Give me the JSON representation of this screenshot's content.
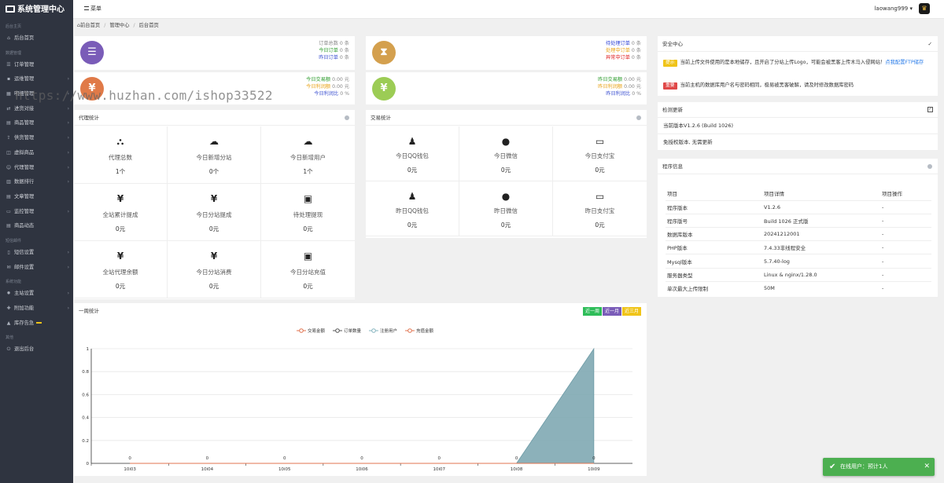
{
  "app": {
    "title": "系统管理中心"
  },
  "sidebar": {
    "sections": [
      {
        "label": "后台主页",
        "items": [
          {
            "label": "后台首页",
            "icon": "house-icon",
            "arrow": false
          }
        ]
      },
      {
        "label": "数据管理",
        "items": [
          {
            "label": "订单管理",
            "icon": "list-icon",
            "arrow": false
          },
          {
            "label": "运维管理",
            "icon": "chat-icon",
            "arrow": true
          },
          {
            "label": "明细管理",
            "icon": "grid-icon",
            "arrow": true
          },
          {
            "label": "进货对接",
            "icon": "link-icon",
            "arrow": true
          },
          {
            "label": "商品管理",
            "icon": "cart-icon",
            "arrow": true
          },
          {
            "label": "供货管理",
            "icon": "upload-icon",
            "arrow": true
          },
          {
            "label": "虚拟商品",
            "icon": "cube-icon",
            "arrow": true
          },
          {
            "label": "代理管理",
            "icon": "user-icon",
            "arrow": true
          },
          {
            "label": "数据排行",
            "icon": "chart-icon",
            "arrow": true
          },
          {
            "label": "文章管理",
            "icon": "doc-icon",
            "arrow": false
          },
          {
            "label": "监控管理",
            "icon": "monitor-icon",
            "arrow": true
          },
          {
            "label": "商品动态",
            "icon": "doc-icon",
            "arrow": false
          }
        ]
      },
      {
        "label": "短信邮件",
        "items": [
          {
            "label": "短信设置",
            "icon": "phone-icon",
            "arrow": true
          },
          {
            "label": "邮件设置",
            "icon": "mail-icon",
            "arrow": true
          }
        ]
      },
      {
        "label": "系统功能",
        "items": [
          {
            "label": "主站设置",
            "icon": "gear-icon",
            "arrow": true
          },
          {
            "label": "附加功能",
            "icon": "puzzle-icon",
            "arrow": true
          },
          {
            "label": "库存告急",
            "icon": "alert-icon",
            "arrow": false,
            "warn": true
          }
        ]
      },
      {
        "label": "其他",
        "items": [
          {
            "label": "退出后台",
            "icon": "power-icon",
            "arrow": false
          }
        ]
      }
    ]
  },
  "topbar": {
    "menu_label": "菜单",
    "user": "laowang999"
  },
  "breadcrumb": {
    "home": "前台首页",
    "center": "管理中心",
    "current": "后台首页"
  },
  "stats": {
    "orders": {
      "lines": [
        {
          "label": "订单总数",
          "value": "0 条",
          "color": "#888888"
        },
        {
          "label": "今日订单",
          "value": "0 条",
          "color": "#2e9c2e"
        },
        {
          "label": "昨日订单",
          "value": "0 条",
          "color": "#3a4fd0"
        }
      ],
      "circle_color": "#7a5cb8",
      "icon": "list-icon"
    },
    "pending": {
      "lines": [
        {
          "label": "待处理订单",
          "value": "0 条",
          "color": "#2b3fd6"
        },
        {
          "label": "处理中订单",
          "value": "0 条",
          "color": "#e8a317"
        },
        {
          "label": "异常中订单",
          "value": "0 条",
          "color": "#e02020"
        }
      ],
      "circle_color": "#d4a04e",
      "icon": "hourglass-icon"
    },
    "today_money": {
      "lines": [
        {
          "label": "今日交易额",
          "value": "0.00 元",
          "color": "#2e9c2e"
        },
        {
          "label": "今日利润额",
          "value": "0.00 元",
          "color": "#e8a317"
        },
        {
          "label": "今日利润比",
          "value": "0 %",
          "color": "#3a4fd0"
        }
      ],
      "circle_color": "#e07a48",
      "icon": "yen-icon"
    },
    "yesterday_money": {
      "lines": [
        {
          "label": "昨日交易额",
          "value": "0.00 元",
          "color": "#2e9c2e"
        },
        {
          "label": "昨日利润额",
          "value": "0.00 元",
          "color": "#e8a317"
        },
        {
          "label": "昨日利润比",
          "value": "0 %",
          "color": "#3a4fd0"
        }
      ],
      "circle_color": "#9ccc55",
      "icon": "yen-icon"
    }
  },
  "agent_stats": {
    "title": "代理统计",
    "cells": [
      {
        "icon": "sitemap-icon",
        "glyph": "⛬",
        "label": "代理总数",
        "value": "1个"
      },
      {
        "icon": "cloud-icon",
        "glyph": "☁",
        "label": "今日新增分站",
        "value": "0个"
      },
      {
        "icon": "cloud-icon",
        "glyph": "☁",
        "label": "今日新增用户",
        "value": "1个"
      },
      {
        "icon": "yen-icon",
        "glyph": "¥",
        "label": "全站累计提成",
        "value": "0元"
      },
      {
        "icon": "yen-icon",
        "glyph": "¥",
        "label": "今日分站提成",
        "value": "0元"
      },
      {
        "icon": "money-icon",
        "glyph": "▣",
        "label": "待处理提现",
        "value": "0元"
      },
      {
        "icon": "yen-icon",
        "glyph": "¥",
        "label": "全站代理余额",
        "value": "0元"
      },
      {
        "icon": "yen-icon",
        "glyph": "¥",
        "label": "今日分站消费",
        "value": "0元"
      },
      {
        "icon": "money-icon",
        "glyph": "▣",
        "label": "今日分站充值",
        "value": "0元"
      }
    ]
  },
  "trade_stats": {
    "title": "交易统计",
    "cells": [
      {
        "icon": "qq-icon",
        "glyph": "♟",
        "label": "今日QQ钱包",
        "value": "0元"
      },
      {
        "icon": "wechat-icon",
        "glyph": "●",
        "label": "今日微信",
        "value": "0元"
      },
      {
        "icon": "card-icon",
        "glyph": "▭",
        "label": "今日支付宝",
        "value": "0元"
      },
      {
        "icon": "qq-icon",
        "glyph": "♟",
        "label": "昨日QQ钱包",
        "value": "0元"
      },
      {
        "icon": "wechat-icon",
        "glyph": "●",
        "label": "昨日微信",
        "value": "0元"
      },
      {
        "icon": "card-icon",
        "glyph": "▭",
        "label": "昨日支付宝",
        "value": "0元"
      }
    ]
  },
  "security": {
    "title": "安全中心",
    "notices": [
      {
        "badge": "提示",
        "badge_color": "#f0c419",
        "text": "当前上传文件使用的是本地储存，且开启了分站上传Logo，可能会被黑客上传木马入侵网站！",
        "link": "点我配置FTP储存"
      },
      {
        "badge": "重要",
        "badge_color": "#e04848",
        "text": "当前主机的数据库用户名与密码相同，极易被黑客破解，请及时修改数据库密码",
        "link": ""
      }
    ]
  },
  "update": {
    "title": "检测更新",
    "current": "当前版本V1.2.6 (Build 1026)",
    "status": "免授权版本, 无需更新"
  },
  "program_info": {
    "title": "程序信息",
    "headers": [
      "项目",
      "项目详情",
      "项目操作"
    ],
    "rows": [
      [
        "程序版本",
        "V1.2.6",
        "-"
      ],
      [
        "程序版号",
        "Build 1026 正式版",
        "-"
      ],
      [
        "数据库版本",
        "20241212001",
        "-"
      ],
      [
        "PHP版本",
        "7.4.33非线程安全",
        "-"
      ],
      [
        "Mysql版本",
        "5.7.40-log",
        "-"
      ],
      [
        "服务器类型",
        "Linux & nginx/1.28.0",
        "-"
      ],
      [
        "单次最大上传限制",
        "50M",
        "-"
      ]
    ]
  },
  "weekly": {
    "title": "一周统计",
    "ranges": [
      {
        "label": "近一周",
        "color": "#2ebd59"
      },
      {
        "label": "近一月",
        "color": "#7a5cb8"
      },
      {
        "label": "近三月",
        "color": "#f0c419"
      }
    ]
  },
  "chart_data": {
    "type": "line",
    "legend": [
      "交易金额",
      "订单数量",
      "注册用户",
      "充值金额"
    ],
    "legend_colors": [
      "#e0734f",
      "#555555",
      "#86b4bf",
      "#e0734f"
    ],
    "categories": [
      "10i03",
      "10i04",
      "10i05",
      "10i06",
      "10i07",
      "10i08",
      "10i09"
    ],
    "series": [
      {
        "name": "交易金额",
        "values": [
          0,
          0,
          0,
          0,
          0,
          0,
          0
        ]
      },
      {
        "name": "订单数量",
        "values": [
          0,
          0,
          0,
          0,
          0,
          0,
          0
        ]
      },
      {
        "name": "注册用户",
        "values": [
          0,
          0,
          0,
          0,
          0,
          0,
          1
        ]
      },
      {
        "name": "充值金额",
        "values": [
          0,
          0,
          0,
          0,
          0,
          0,
          0
        ]
      }
    ],
    "point_labels": [
      "0",
      "0",
      "0",
      "0",
      "0",
      "0",
      "0"
    ],
    "ylim": [
      0,
      1
    ],
    "yticks": [
      "0",
      "0.2",
      "0.4",
      "0.6",
      "0.8",
      "1"
    ],
    "grid": true,
    "legend_position": "top-center"
  },
  "toast": {
    "text": "在线用户：预计1人"
  },
  "watermark": "https://www.huzhan.com/ishop33522"
}
